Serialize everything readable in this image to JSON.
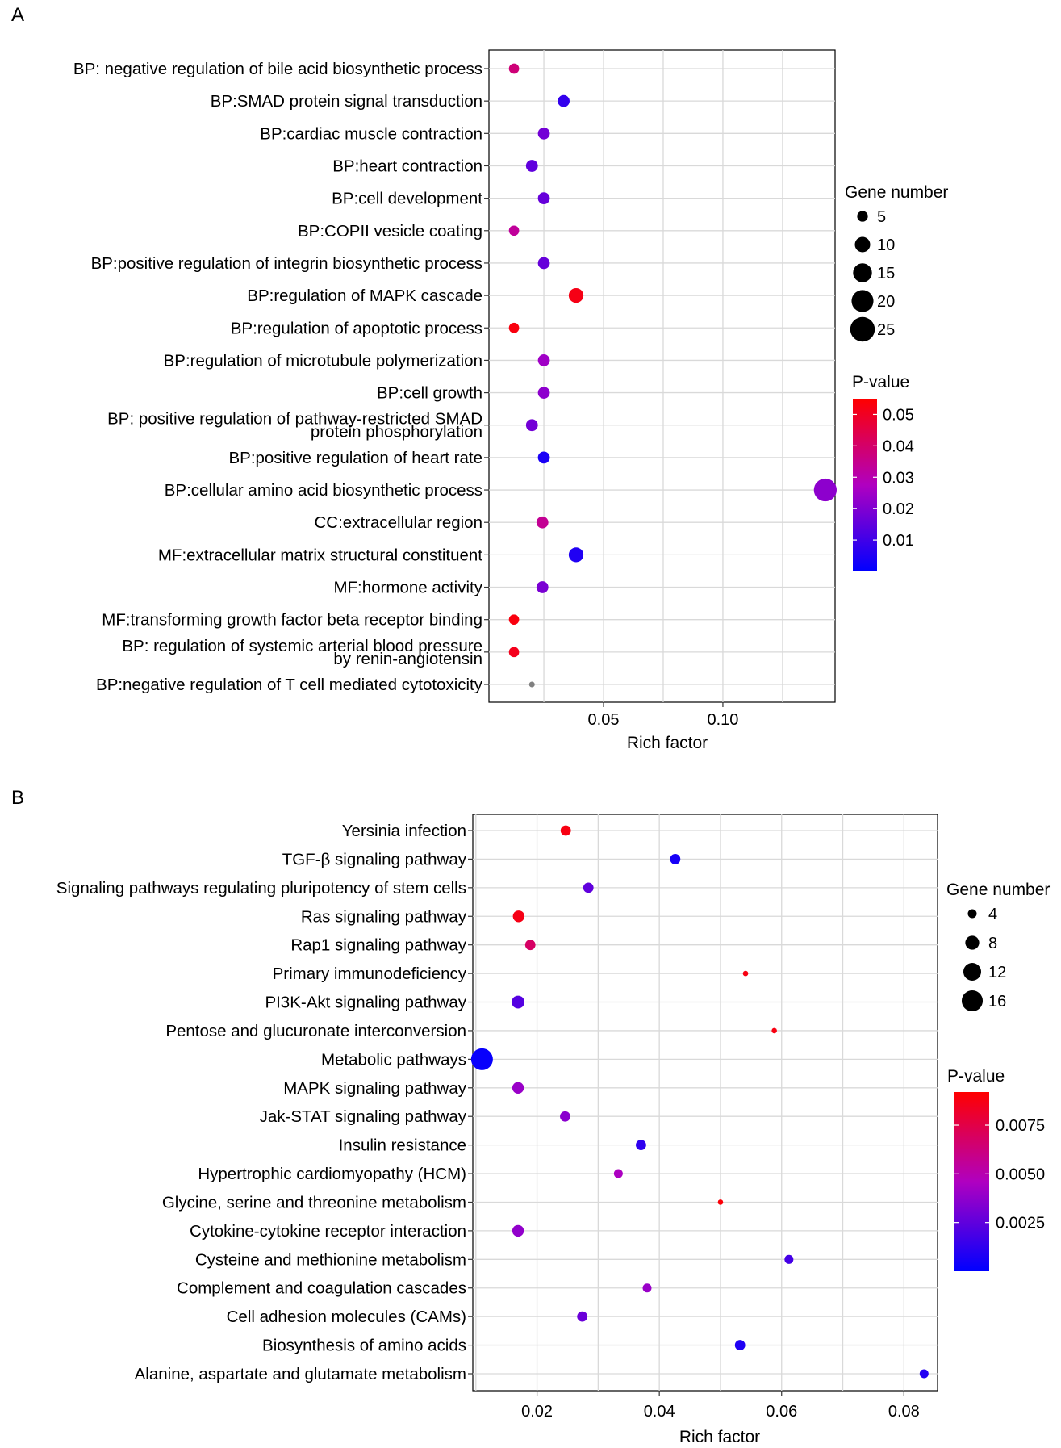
{
  "panel_labels": [
    "A",
    "B"
  ],
  "legend_gene_title": "Gene number",
  "legend_p_title": "P-value",
  "chart_data": [
    {
      "type": "scatter",
      "panel": "A",
      "xlabel": "Rich factor",
      "ylabel": "",
      "xlim": [
        0.002,
        0.147
      ],
      "xticks": [
        0.05,
        0.1
      ],
      "xtick_labels": [
        "0.05",
        "0.10"
      ],
      "grid": true,
      "legend_position": "right",
      "size_legend": [
        5,
        10,
        15,
        20,
        25
      ],
      "color_range": [
        0.0,
        0.055
      ],
      "color_ticks": [
        0.01,
        0.02,
        0.03,
        0.04,
        0.05
      ],
      "color_tick_labels": [
        "0.01",
        "0.02",
        "0.03",
        "0.04",
        "0.05"
      ],
      "categories": [
        "BP: negative regulation of bile acid biosynthetic process",
        "BP:SMAD protein signal transduction",
        "BP:cardiac muscle contraction",
        "BP:heart contraction",
        "BP:cell development",
        "BP:COPII vesicle coating",
        "BP:positive regulation of integrin biosynthetic process",
        "BP:regulation of MAPK cascade",
        "BP:regulation of apoptotic process",
        "BP:regulation of microtubule polymerization",
        "BP:cell growth",
        "BP: positive regulation of pathway-restricted SMAD protein phosphorylation",
        "BP:positive regulation of heart rate",
        "BP:cellular amino acid biosynthetic process",
        "CC:extracellular region",
        "MF:extracellular matrix structural constituent",
        "MF:hormone activity",
        "MF:transforming growth factor beta receptor binding",
        "BP: regulation of systemic arterial blood pressure by renin-angiotensin",
        "BP:negative regulation of T cell mediated cytotoxicity"
      ],
      "label_lines": [
        [
          "BP: negative regulation of bile acid biosynthetic process"
        ],
        [
          "BP:SMAD protein signal transduction"
        ],
        [
          "BP:cardiac muscle contraction"
        ],
        [
          "BP:heart contraction"
        ],
        [
          "BP:cell development"
        ],
        [
          "BP:COPII vesicle coating"
        ],
        [
          "BP:positive regulation of integrin biosynthetic process"
        ],
        [
          "BP:regulation of MAPK cascade"
        ],
        [
          "BP:regulation of apoptotic process"
        ],
        [
          "BP:regulation of microtubule polymerization"
        ],
        [
          "BP:cell growth"
        ],
        [
          "BP: positive regulation of pathway-restricted SMAD",
          "protein phosphorylation"
        ],
        [
          "BP:positive regulation of heart rate"
        ],
        [
          "BP:cellular amino acid biosynthetic process"
        ],
        [
          "CC:extracellular region"
        ],
        [
          "MF:extracellular matrix structural constituent"
        ],
        [
          "MF:hormone activity"
        ],
        [
          "MF:transforming growth factor beta receptor binding"
        ],
        [
          "BP: regulation of systemic arterial blood pressure",
          "by renin-angiotensin"
        ],
        [
          "BP:negative regulation of T cell mediated cytotoxicity"
        ]
      ],
      "x": [
        0.0125,
        0.0333,
        0.025,
        0.02,
        0.025,
        0.0125,
        0.025,
        0.0385,
        0.0125,
        0.025,
        0.025,
        0.02,
        0.025,
        0.1429,
        0.0244,
        0.0385,
        0.0244,
        0.0125,
        0.0125,
        0.02
      ],
      "gene_number": [
        3,
        4,
        4,
        4,
        4,
        3,
        4,
        6,
        3,
        4,
        4,
        4,
        4,
        14,
        4,
        6,
        4,
        3,
        3,
        1
      ],
      "p_value": [
        0.038,
        0.008,
        0.018,
        0.015,
        0.016,
        0.033,
        0.016,
        0.052,
        0.053,
        0.025,
        0.022,
        0.018,
        0.004,
        0.022,
        0.034,
        0.005,
        0.019,
        0.053,
        0.051,
        null
      ]
    },
    {
      "type": "scatter",
      "panel": "B",
      "xlabel": "Rich factor",
      "ylabel": "",
      "xlim": [
        0.0095,
        0.0855
      ],
      "xticks": [
        0.02,
        0.04,
        0.06,
        0.08
      ],
      "xtick_labels": [
        "0.02",
        "0.04",
        "0.06",
        "0.08"
      ],
      "grid": true,
      "legend_position": "right",
      "size_legend": [
        4,
        8,
        12,
        16
      ],
      "color_range": [
        0.0,
        0.0092
      ],
      "color_ticks": [
        0.0025,
        0.005,
        0.0075
      ],
      "color_tick_labels": [
        "0.0025",
        "0.0050",
        "0.0075"
      ],
      "categories": [
        "Yersinia infection",
        "TGF-β signaling pathway",
        "Signaling pathways regulating pluripotency of stem cells",
        "Ras signaling pathway",
        "Rap1 signaling pathway",
        "Primary immunodeficiency",
        "PI3K-Akt signaling pathway",
        "Pentose and glucuronate interconversion",
        "Metabolic pathways",
        "MAPK signaling pathway",
        "Jak-STAT signaling pathway",
        "Insulin resistance",
        "Hypertrophic cardiomyopathy (HCM)",
        "Glycine, serine and threonine metabolism",
        "Cytokine-cytokine receptor interaction",
        "Cysteine and methionine metabolism",
        "Complement and coagulation cascades",
        "Cell adhesion molecules (CAMs)",
        "Biosynthesis of amino acids",
        "Alanine, aspartate and glutamate metabolism"
      ],
      "x": [
        0.0247,
        0.0426,
        0.0284,
        0.017,
        0.0189,
        0.0541,
        0.0169,
        0.0588,
        0.011,
        0.0169,
        0.0246,
        0.037,
        0.0333,
        0.05,
        0.0169,
        0.0612,
        0.038,
        0.0274,
        0.0532,
        0.0833
      ],
      "gene_number": [
        5,
        5,
        5,
        6,
        5,
        2,
        7,
        2,
        17,
        6,
        5,
        5,
        4,
        2,
        6,
        4,
        4,
        5,
        5,
        4
      ],
      "p_value": [
        0.0088,
        0.0006,
        0.0025,
        0.0087,
        0.0068,
        0.0088,
        0.0022,
        0.0088,
        0.0002,
        0.004,
        0.0036,
        0.0012,
        0.0045,
        0.009,
        0.0038,
        0.0018,
        0.004,
        0.0028,
        0.0008,
        0.0009
      ]
    }
  ]
}
